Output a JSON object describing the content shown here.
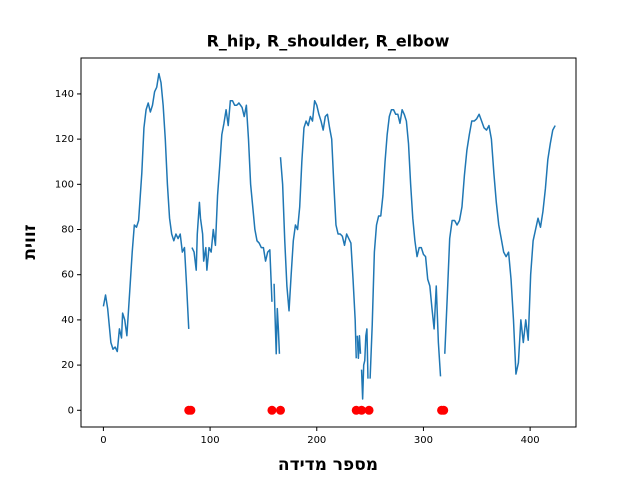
{
  "chart_data": {
    "type": "line",
    "title": "R_hip, R_shoulder, R_elbow",
    "x_label": "מספר מדידה",
    "y_label": "זווית",
    "xlim": [
      -21,
      443
    ],
    "ylim": [
      -7.4,
      155.9
    ],
    "xticks": [
      0,
      100,
      200,
      300,
      400
    ],
    "yticks": [
      0,
      20,
      40,
      60,
      80,
      100,
      120,
      140
    ],
    "series": [
      {
        "type": "line",
        "color": "#1f77b4",
        "x": [
          0,
          2,
          4,
          7,
          9,
          11,
          13,
          15,
          17,
          18,
          20,
          22,
          25,
          27,
          29,
          31,
          33,
          36,
          38,
          40,
          42,
          44,
          46,
          48,
          50,
          52,
          54,
          56,
          58,
          60,
          62,
          64,
          66,
          68,
          70,
          72,
          74,
          76,
          78,
          80,
          81,
          83,
          85,
          87,
          88,
          90,
          91,
          93,
          94,
          96,
          97,
          99,
          101,
          103,
          105,
          107,
          109,
          111,
          113,
          115,
          117,
          119,
          121,
          123,
          125,
          127,
          130,
          132,
          134,
          136,
          138,
          140,
          142,
          144,
          146,
          148,
          150,
          152,
          154,
          156,
          158,
          159,
          160,
          161,
          162,
          163,
          164,
          165,
          165.5,
          166,
          168,
          170,
          172,
          174,
          176,
          178,
          180,
          182,
          184,
          186,
          188,
          190,
          192,
          194,
          196,
          198,
          200,
          202,
          204,
          206,
          208,
          210,
          212,
          214,
          216,
          218,
          220,
          222,
          224,
          226,
          228,
          230,
          232,
          234,
          236,
          237,
          237.5,
          238,
          239,
          240,
          241,
          241.5,
          242,
          243,
          244,
          245,
          246,
          247,
          248,
          249,
          250,
          252,
          254,
          256,
          258,
          260,
          262,
          264,
          266,
          268,
          270,
          272,
          274,
          276,
          278,
          280,
          282,
          284,
          286,
          288,
          290,
          292,
          294,
          296,
          298,
          300,
          302,
          304,
          306,
          308,
          310,
          312,
          314,
          316,
          317,
          320,
          322.3,
          324.6,
          326.9,
          329.2,
          331.5,
          333.8,
          336.1,
          338.4,
          340.7,
          343,
          345.3,
          347.6,
          349.9,
          352.2,
          354.5,
          356.8,
          359.1,
          361.4,
          363.7,
          366,
          368.3,
          370.6,
          372.9,
          375.2,
          377.5,
          379.8,
          382.1,
          384.4,
          386.7,
          389,
          391.3,
          393.6,
          395.9,
          398.2,
          400.5,
          402.8,
          405.1,
          407.4,
          409.7,
          412,
          414.3,
          416.6,
          418.9,
          421.2,
          423.5
        ],
        "values": [
          46,
          51,
          45,
          30,
          27,
          28,
          26,
          36,
          32,
          43,
          40,
          33,
          55,
          70,
          82,
          81,
          84,
          105,
          125,
          133,
          136,
          132,
          135,
          141,
          143,
          149,
          145,
          135,
          120,
          100,
          85,
          78,
          75,
          78,
          76,
          78,
          70,
          72,
          55,
          36,
          null,
          72,
          70,
          62,
          78,
          92,
          85,
          78,
          66,
          72,
          62,
          72,
          70,
          80,
          73,
          95,
          108,
          122,
          127,
          133,
          126,
          137,
          137,
          135,
          135,
          136,
          134,
          130,
          135,
          120,
          100,
          90,
          80,
          75,
          74,
          72,
          72,
          66,
          70,
          71,
          48,
          null,
          56,
          40,
          25,
          45,
          36,
          25,
          null,
          112,
          100,
          75,
          55,
          44,
          60,
          75,
          82,
          80,
          90,
          110,
          125,
          128,
          126,
          130,
          128,
          137,
          135,
          131,
          128,
          124,
          130,
          131,
          125,
          120,
          100,
          82,
          78,
          78,
          77,
          73,
          78,
          76,
          74,
          58,
          40,
          23,
          null,
          33,
          23,
          33,
          25,
          null,
          18,
          5,
          20,
          22,
          33,
          36,
          14,
          null,
          14,
          38,
          70,
          82,
          86,
          86,
          95,
          110,
          122,
          130,
          133,
          133,
          131,
          131,
          127,
          133,
          131,
          128,
          118,
          100,
          85,
          75,
          68,
          72,
          72,
          69,
          68,
          58,
          55,
          45,
          36,
          55,
          30,
          15,
          null,
          25,
          50,
          76,
          84,
          84,
          82,
          84,
          90,
          104,
          115,
          122,
          128,
          128,
          129,
          131,
          128,
          125,
          124,
          126,
          120,
          105,
          92,
          82,
          76,
          70,
          68,
          70,
          58,
          40,
          16,
          21,
          40,
          30,
          40,
          31,
          60,
          75,
          80,
          85,
          81,
          88,
          98,
          111,
          118,
          124,
          126
        ]
      },
      {
        "type": "scatter",
        "color": "#ff0000",
        "x": [
          80,
          82,
          158,
          166,
          237,
          242,
          249,
          317,
          319
        ],
        "values": [
          0,
          0,
          0,
          0,
          0,
          0,
          0,
          0,
          0
        ]
      }
    ]
  }
}
